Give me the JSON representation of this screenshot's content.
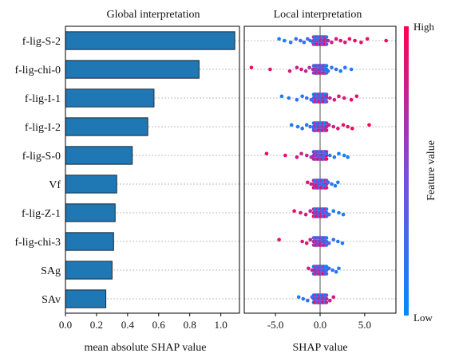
{
  "titles": {
    "left": "Global interpretation",
    "right": "Local interpretation"
  },
  "axes": {
    "left_xlabel": "mean absolute SHAP value",
    "right_xlabel": "SHAP value",
    "left_ticks": [
      "0.0",
      "0.2",
      "0.4",
      "0.6",
      "0.8",
      "1.0"
    ],
    "right_ticks": [
      "-5.0",
      "0.0",
      "5.0"
    ]
  },
  "colorbar": {
    "high": "High",
    "low": "Low",
    "label": "Feature value",
    "color_high": "#ff0052",
    "color_mid": "#7d4bd8",
    "color_low": "#008bfb"
  },
  "colors": {
    "bar_fill": "#1f77b4",
    "bar_edge": "#1b2a3a"
  },
  "chart_data": [
    {
      "type": "bar",
      "orientation": "horizontal",
      "title": "Global interpretation",
      "xlabel": "mean absolute SHAP value",
      "xlim": [
        0.0,
        1.12
      ],
      "grid": "horizontal dashed",
      "categories": [
        "f-lig-S-2",
        "f-lig-chi-0",
        "f-lig-I-1",
        "f-lig-I-2",
        "f-lig-S-0",
        "Vf",
        "f-lig-Z-1",
        "f-lig-chi-3",
        "SAg",
        "SAv"
      ],
      "values": [
        1.09,
        0.86,
        0.57,
        0.53,
        0.43,
        0.33,
        0.32,
        0.31,
        0.3,
        0.26
      ]
    },
    {
      "type": "scatter",
      "subtype": "beeswarm",
      "title": "Local interpretation",
      "xlabel": "SHAP value",
      "xlim": [
        -8.5,
        8.5
      ],
      "color_scale": "Feature value (Low to High)",
      "categories": [
        "f-lig-S-2",
        "f-lig-chi-0",
        "f-lig-I-1",
        "f-lig-I-2",
        "f-lig-S-0",
        "Vf",
        "f-lig-Z-1",
        "f-lig-chi-3",
        "SAg",
        "SAv"
      ],
      "points": [
        [
          [
            -4.6,
            0.1
          ],
          [
            -4.0,
            0.1
          ],
          [
            -3.3,
            0.15
          ],
          [
            -2.7,
            0.2
          ],
          [
            -2.2,
            0.25
          ],
          [
            -1.8,
            0.2
          ],
          [
            -1.4,
            0.3
          ],
          [
            -1.1,
            0.15
          ],
          [
            -0.8,
            0.3
          ],
          [
            -0.5,
            0.25
          ],
          [
            -0.3,
            0.4
          ],
          [
            0.2,
            0.45
          ],
          [
            0.5,
            0.7
          ],
          [
            0.9,
            0.75
          ],
          [
            1.3,
            0.8
          ],
          [
            1.8,
            0.85
          ],
          [
            2.3,
            0.9
          ],
          [
            2.8,
            0.85
          ],
          [
            3.3,
            0.9
          ],
          [
            3.9,
            0.95
          ],
          [
            4.6,
            0.9
          ],
          [
            5.3,
            0.95
          ],
          [
            7.4,
            0.97
          ]
        ],
        [
          [
            -7.7,
            0.95
          ],
          [
            -5.6,
            0.9
          ],
          [
            -3.4,
            0.85
          ],
          [
            -2.6,
            0.8
          ],
          [
            -2.1,
            0.85
          ],
          [
            -1.6,
            0.75
          ],
          [
            -1.2,
            0.7
          ],
          [
            -0.8,
            0.7
          ],
          [
            -0.4,
            0.6
          ],
          [
            0.1,
            0.35
          ],
          [
            0.5,
            0.25
          ],
          [
            0.9,
            0.2
          ],
          [
            1.3,
            0.15
          ],
          [
            1.8,
            0.2
          ],
          [
            2.3,
            0.1
          ],
          [
            2.8,
            0.15
          ],
          [
            3.5,
            0.1
          ]
        ],
        [
          [
            -4.3,
            0.1
          ],
          [
            -3.5,
            0.15
          ],
          [
            -2.6,
            0.2
          ],
          [
            -2.0,
            0.15
          ],
          [
            -1.5,
            0.25
          ],
          [
            -1.0,
            0.3
          ],
          [
            -0.6,
            0.3
          ],
          [
            -0.2,
            0.4
          ],
          [
            0.3,
            0.6
          ],
          [
            0.7,
            0.75
          ],
          [
            1.1,
            0.8
          ],
          [
            1.6,
            0.85
          ],
          [
            2.1,
            0.85
          ],
          [
            2.7,
            0.9
          ],
          [
            3.5,
            0.95
          ],
          [
            4.1,
            0.9
          ]
        ],
        [
          [
            -3.2,
            0.1
          ],
          [
            -2.5,
            0.15
          ],
          [
            -2.0,
            0.2
          ],
          [
            -1.5,
            0.15
          ],
          [
            -1.1,
            0.25
          ],
          [
            -0.7,
            0.3
          ],
          [
            -0.3,
            0.35
          ],
          [
            0.2,
            0.6
          ],
          [
            0.6,
            0.7
          ],
          [
            1.0,
            0.75
          ],
          [
            1.5,
            0.8
          ],
          [
            2.0,
            0.85
          ],
          [
            2.6,
            0.9
          ],
          [
            3.1,
            0.9
          ],
          [
            3.6,
            0.95
          ],
          [
            5.5,
            0.97
          ]
        ],
        [
          [
            -6.0,
            0.95
          ],
          [
            -3.9,
            0.9
          ],
          [
            -2.6,
            0.85
          ],
          [
            -2.1,
            0.8
          ],
          [
            -1.5,
            0.75
          ],
          [
            -1.0,
            0.7
          ],
          [
            -0.6,
            0.6
          ],
          [
            -0.2,
            0.5
          ],
          [
            0.3,
            0.3
          ],
          [
            0.7,
            0.2
          ],
          [
            1.1,
            0.2
          ],
          [
            1.6,
            0.15
          ],
          [
            2.1,
            0.1
          ],
          [
            2.7,
            0.1
          ],
          [
            3.1,
            0.1
          ]
        ],
        [
          [
            -1.4,
            0.85
          ],
          [
            -1.0,
            0.8
          ],
          [
            -0.6,
            0.7
          ],
          [
            -0.3,
            0.5
          ],
          [
            0.1,
            0.3
          ],
          [
            0.5,
            0.25
          ],
          [
            0.9,
            0.2
          ],
          [
            1.3,
            0.15
          ],
          [
            1.7,
            0.1
          ],
          [
            2.0,
            0.1
          ]
        ],
        [
          [
            -2.9,
            0.95
          ],
          [
            -2.2,
            0.85
          ],
          [
            -1.6,
            0.8
          ],
          [
            -1.1,
            0.75
          ],
          [
            -0.6,
            0.65
          ],
          [
            -0.2,
            0.5
          ],
          [
            0.2,
            0.35
          ],
          [
            0.6,
            0.25
          ],
          [
            1.0,
            0.2
          ],
          [
            1.5,
            0.15
          ],
          [
            2.1,
            0.1
          ],
          [
            2.6,
            0.1
          ]
        ],
        [
          [
            -4.6,
            0.95
          ],
          [
            -2.0,
            0.9
          ],
          [
            -1.5,
            0.85
          ],
          [
            -1.1,
            0.8
          ],
          [
            -0.7,
            0.7
          ],
          [
            -0.3,
            0.55
          ],
          [
            0.2,
            0.35
          ],
          [
            0.6,
            0.3
          ],
          [
            1.0,
            0.25
          ],
          [
            1.5,
            0.2
          ],
          [
            2.0,
            0.15
          ],
          [
            2.5,
            0.1
          ]
        ],
        [
          [
            -1.3,
            0.85
          ],
          [
            -0.9,
            0.75
          ],
          [
            -0.5,
            0.65
          ],
          [
            -0.2,
            0.5
          ],
          [
            0.2,
            0.35
          ],
          [
            0.6,
            0.3
          ],
          [
            1.0,
            0.25
          ],
          [
            1.4,
            0.2
          ],
          [
            1.8,
            0.15
          ],
          [
            2.1,
            0.1
          ]
        ],
        [
          [
            -2.4,
            0.1
          ],
          [
            -1.9,
            0.15
          ],
          [
            -1.4,
            0.2
          ],
          [
            -0.9,
            0.3
          ],
          [
            -0.5,
            0.4
          ],
          [
            -0.1,
            0.5
          ],
          [
            0.3,
            0.6
          ],
          [
            0.7,
            0.7
          ],
          [
            1.1,
            0.8
          ],
          [
            1.5,
            0.85
          ]
        ]
      ]
    }
  ]
}
